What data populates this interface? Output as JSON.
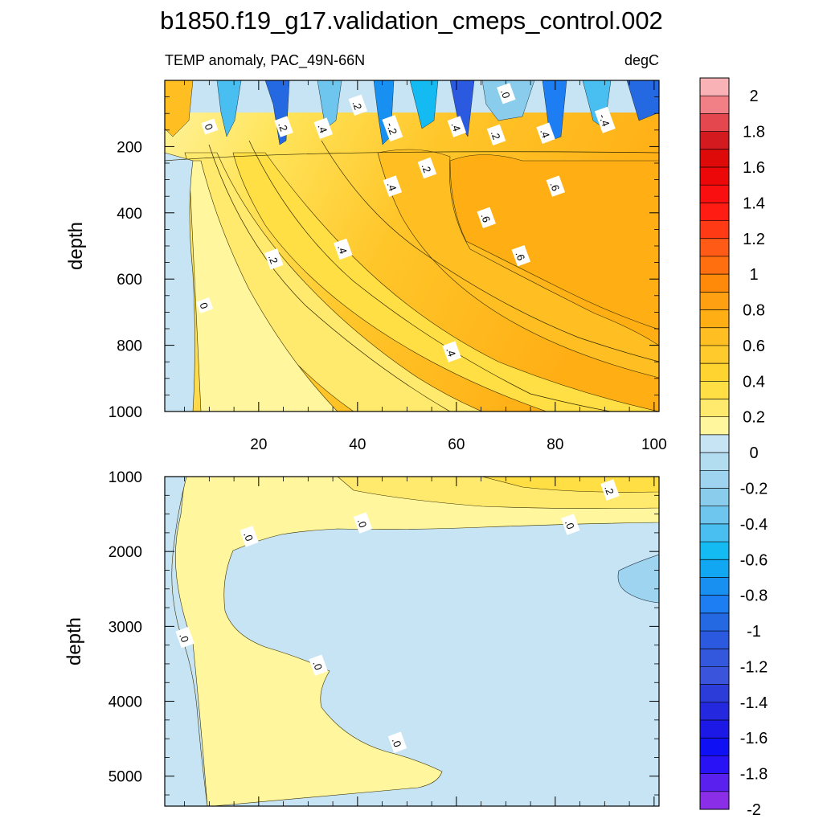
{
  "chart_data": {
    "type": "heatmap",
    "title": "b1850.f19_g17.validation_cmeps_control.002",
    "subtitle_left": "TEMP anomaly, PAC_49N-66N",
    "subtitle_right": "degC",
    "x": {
      "label": "",
      "range": [
        1,
        101
      ],
      "ticks": [
        20,
        40,
        60,
        80,
        100
      ],
      "tick_labels": [
        "20",
        "40",
        "60",
        "80",
        "100"
      ]
    },
    "upper_panel": {
      "ylabel": "depth",
      "yrange": [
        0,
        1000
      ],
      "yticks": [
        200,
        400,
        600,
        800,
        1000
      ],
      "ytick_labels": [
        "200",
        "400",
        "600",
        "800",
        "1000"
      ],
      "contour_labels": [
        {
          "text": "0",
          "x": 10,
          "y": 140
        },
        {
          "text": ".2",
          "x": 25,
          "y": 140
        },
        {
          "text": ".4",
          "x": 33,
          "y": 145
        },
        {
          "text": ".2",
          "x": 40,
          "y": 75
        },
        {
          "text": "-.2",
          "x": 47,
          "y": 145
        },
        {
          "text": ".2",
          "x": 54,
          "y": 265
        },
        {
          "text": ".4",
          "x": 47,
          "y": 320
        },
        {
          "text": ".4",
          "x": 60,
          "y": 140
        },
        {
          "text": ".2",
          "x": 68,
          "y": 165
        },
        {
          "text": ".0",
          "x": 70,
          "y": 40
        },
        {
          "text": ".4",
          "x": 78,
          "y": 160
        },
        {
          "text": "-.4",
          "x": 90,
          "y": 120
        },
        {
          "text": ".6",
          "x": 80,
          "y": 320
        },
        {
          "text": ".6",
          "x": 66,
          "y": 415
        },
        {
          "text": ".6",
          "x": 73,
          "y": 530
        },
        {
          "text": ".4",
          "x": 37,
          "y": 510
        },
        {
          "text": ".2",
          "x": 23,
          "y": 540
        },
        {
          "text": "0",
          "x": 9,
          "y": 680
        },
        {
          "text": ".4",
          "x": 59,
          "y": 820
        }
      ]
    },
    "lower_panel": {
      "ylabel": "depth",
      "yrange": [
        1000,
        5400
      ],
      "yticks": [
        1000,
        2000,
        3000,
        4000,
        5000
      ],
      "ytick_labels": [
        "1000",
        "2000",
        "3000",
        "4000",
        "5000"
      ],
      "contour_labels": [
        {
          "text": ".2",
          "x": 91,
          "y": 1180
        },
        {
          "text": ".0",
          "x": 18,
          "y": 1800
        },
        {
          "text": ".0",
          "x": 41,
          "y": 1620
        },
        {
          "text": ".0",
          "x": 83,
          "y": 1640
        },
        {
          "text": ".0",
          "x": 5,
          "y": 3150
        },
        {
          "text": ".0",
          "x": 32,
          "y": 3520
        },
        {
          "text": ".0",
          "x": 48,
          "y": 4550
        }
      ]
    },
    "colorbar": {
      "levels": [
        -2.0,
        -1.9,
        -1.8,
        -1.7,
        -1.6,
        -1.5,
        -1.4,
        -1.3,
        -1.2,
        -1.1,
        -1.0,
        -0.9,
        -0.8,
        -0.7,
        -0.6,
        -0.5,
        -0.4,
        -0.3,
        -0.2,
        -0.1,
        0.0,
        0.1,
        0.2,
        0.3,
        0.4,
        0.5,
        0.6,
        0.7,
        0.8,
        0.9,
        1.0,
        1.1,
        1.2,
        1.3,
        1.4,
        1.5,
        1.6,
        1.7,
        1.8,
        1.9,
        2.0
      ],
      "tick_labels": [
        "2",
        "1.8",
        "1.6",
        "1.4",
        "1.2",
        "1",
        "0.8",
        "0.6",
        "0.4",
        "0.2",
        "0",
        "-0.2",
        "-0.4",
        "-0.6",
        "-0.8",
        "-1",
        "-1.2",
        "-1.4",
        "-1.6",
        "-1.8",
        "-2"
      ],
      "colors": [
        "#f9b3b7",
        "#f07f86",
        "#e4474e",
        "#d21a1f",
        "#de0a0a",
        "#ec0808",
        "#f90f0f",
        "#ff1c12",
        "#ff3a14",
        "#ff5a16",
        "#ff6e0f",
        "#ff8a0a",
        "#ffa012",
        "#ffae14",
        "#ffbe22",
        "#ffca2c",
        "#ffd431",
        "#ffdf44",
        "#ffea6e",
        "#fff69e",
        "#c6e4f4",
        "#b2dcf0",
        "#9ed4ef",
        "#8acceb",
        "#6ec6ef",
        "#48bff0",
        "#14bbf2",
        "#12a7f2",
        "#1890f2",
        "#1c7ef2",
        "#2468e2",
        "#2b5ae0",
        "#3458dd",
        "#3a54dc",
        "#2c3cd8",
        "#2428de",
        "#1c18e6",
        "#1010f5",
        "#2a12f6",
        "#5a20ee",
        "#8a2ee8"
      ]
    }
  }
}
